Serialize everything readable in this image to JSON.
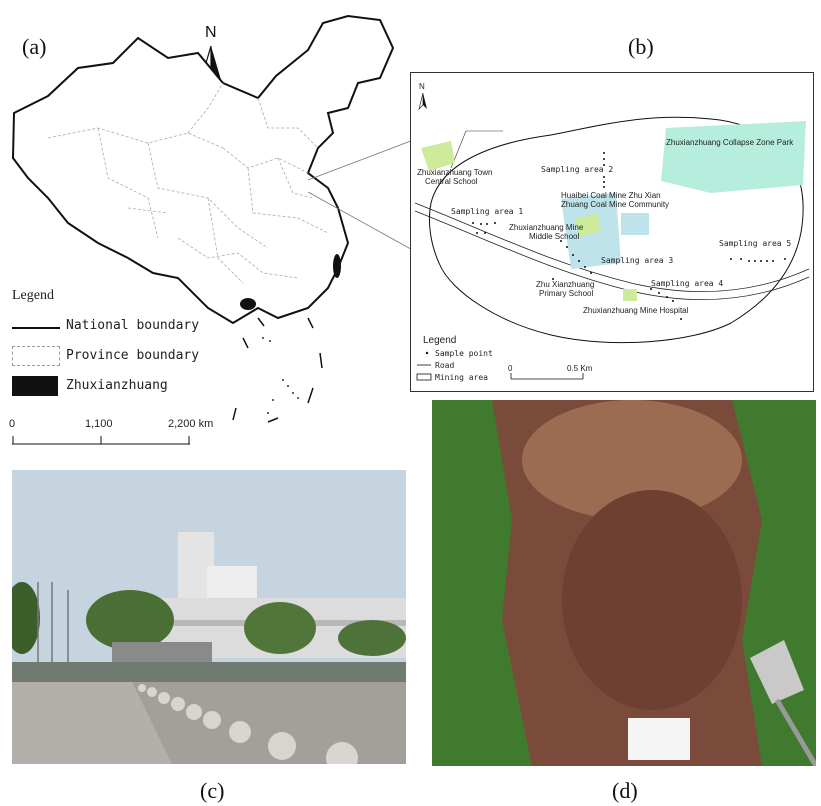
{
  "panel_a": {
    "label": "(a)",
    "north": "N",
    "legend_title": "Legend",
    "legend_items": [
      "National boundary",
      "Province boundary",
      "Zhuxianzhuang"
    ],
    "scale_ticks": [
      "0",
      "1,100",
      "2,200 km"
    ]
  },
  "panel_b": {
    "label": "(b)",
    "north": "N",
    "labels": {
      "collapse_park": "Zhuxianzhuang Collapse Zone Park",
      "town_school_1": "Zhuxianzhuang Town",
      "town_school_2": "Central School",
      "sa2": "Sampling area 2",
      "huaibei_1": "Huaibei Coal Mine Zhu Xian",
      "huaibei_2": "Zhuang Coal Mine Community",
      "sa1": "Sampling area 1",
      "middle_1": "Zhuxianzhuang Mine",
      "middle_2": "Middle School",
      "sa3": "Sampling area 3",
      "sa5": "Sampling area 5",
      "primary_1": "Zhu Xianzhuang",
      "primary_2": "Primary School",
      "sa4": "Sampling area 4",
      "hospital": "Zhuxianzhuang Mine Hospital"
    },
    "legend_title": "Legend",
    "legend_items": [
      "Sample point",
      "Road",
      "Mining area"
    ],
    "scale_ticks": [
      "0",
      "0.5 Km"
    ]
  },
  "panel_c": {
    "label": "(c)"
  },
  "panel_d": {
    "label": "(d)"
  },
  "colors": {
    "park_fill": "#b6eedd",
    "school_fill": "#cdeb9a",
    "community_fill": "#bfe3ea",
    "sky": "#c6d4e0",
    "soil": "#7a4b3a",
    "grass": "#3f7a2e"
  }
}
